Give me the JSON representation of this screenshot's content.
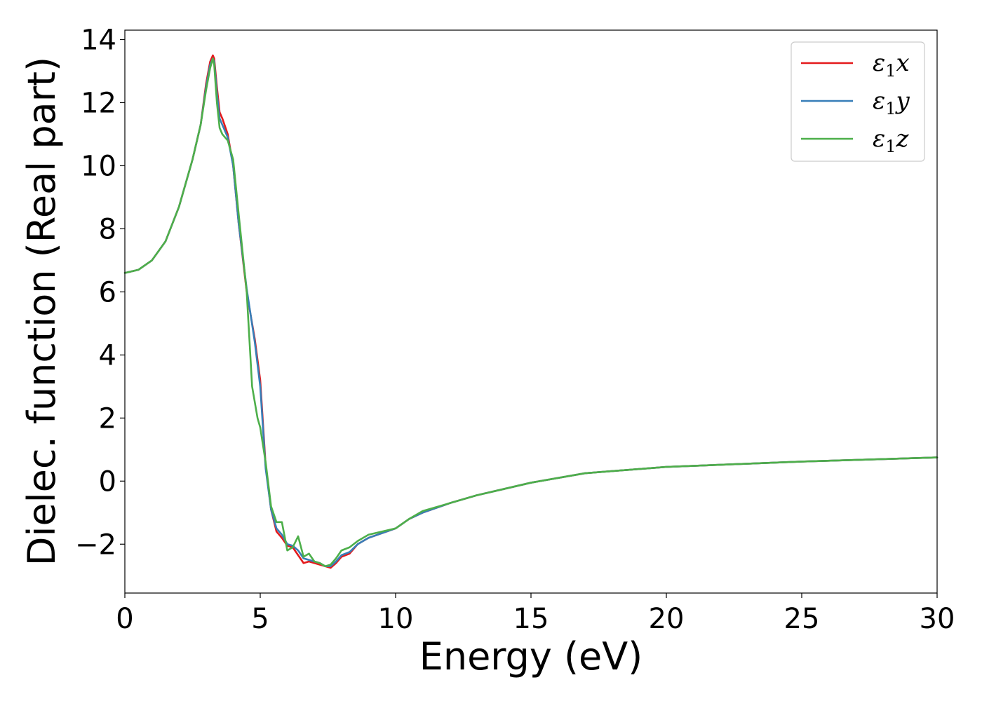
{
  "chart_data": {
    "type": "line",
    "xlabel": "Energy (eV)",
    "ylabel": "Dielec. function (Real part)",
    "xlim": [
      0,
      30
    ],
    "ylim": [
      -3.55,
      14.3
    ],
    "xticks": [
      0,
      5,
      10,
      15,
      20,
      25,
      30
    ],
    "yticks": [
      -2,
      0,
      2,
      4,
      6,
      8,
      10,
      12,
      14
    ],
    "xtick_labels": [
      "0",
      "5",
      "10",
      "15",
      "20",
      "25",
      "30"
    ],
    "ytick_labels": [
      "−2",
      "0",
      "2",
      "4",
      "6",
      "8",
      "10",
      "12",
      "14"
    ],
    "grid": false,
    "legend_position": "top-right",
    "series": [
      {
        "name": "ε₁x",
        "legend_base": "ε",
        "legend_sub": "1",
        "legend_var": "x",
        "color": "#e41a1c",
        "x": [
          0,
          0.5,
          1.0,
          1.5,
          2.0,
          2.5,
          2.8,
          3.0,
          3.15,
          3.25,
          3.3,
          3.4,
          3.5,
          3.6,
          3.8,
          4.0,
          4.2,
          4.5,
          4.8,
          5.0,
          5.2,
          5.4,
          5.6,
          5.8,
          6.0,
          6.2,
          6.4,
          6.6,
          6.8,
          7.0,
          7.2,
          7.4,
          7.6,
          7.8,
          8.0,
          8.3,
          8.6,
          9.0,
          9.5,
          10.0,
          10.5,
          11.0,
          12.0,
          13.0,
          14.0,
          15.0,
          17.0,
          20.0,
          25.0,
          30.0
        ],
        "y": [
          6.6,
          6.7,
          7.0,
          7.6,
          8.7,
          10.2,
          11.3,
          12.6,
          13.3,
          13.5,
          13.4,
          12.5,
          11.7,
          11.5,
          11.0,
          10.0,
          8.2,
          6.0,
          4.5,
          3.2,
          0.5,
          -0.9,
          -1.6,
          -1.8,
          -2.05,
          -2.1,
          -2.35,
          -2.6,
          -2.55,
          -2.6,
          -2.65,
          -2.7,
          -2.75,
          -2.6,
          -2.4,
          -2.3,
          -2.0,
          -1.8,
          -1.65,
          -1.5,
          -1.2,
          -1.0,
          -0.7,
          -0.45,
          -0.25,
          -0.05,
          0.25,
          0.45,
          0.62,
          0.75
        ]
      },
      {
        "name": "ε₁y",
        "legend_base": "ε",
        "legend_sub": "1",
        "legend_var": "y",
        "color": "#377eb8",
        "x": [
          0,
          0.5,
          1.0,
          1.5,
          2.0,
          2.5,
          2.8,
          3.0,
          3.15,
          3.25,
          3.3,
          3.4,
          3.5,
          3.6,
          3.8,
          4.0,
          4.2,
          4.5,
          4.8,
          5.0,
          5.2,
          5.4,
          5.6,
          5.8,
          6.0,
          6.2,
          6.4,
          6.6,
          6.8,
          7.0,
          7.2,
          7.4,
          7.6,
          7.8,
          8.0,
          8.3,
          8.6,
          9.0,
          9.5,
          10.0,
          10.5,
          11.0,
          12.0,
          13.0,
          14.0,
          15.0,
          17.0,
          20.0,
          25.0,
          30.0
        ],
        "y": [
          6.6,
          6.7,
          7.0,
          7.6,
          8.7,
          10.2,
          11.3,
          12.5,
          13.2,
          13.4,
          13.3,
          12.3,
          11.5,
          11.3,
          10.9,
          10.0,
          8.2,
          6.1,
          4.4,
          3.0,
          0.4,
          -0.9,
          -1.5,
          -1.7,
          -2.0,
          -2.05,
          -2.2,
          -2.45,
          -2.5,
          -2.55,
          -2.6,
          -2.7,
          -2.7,
          -2.55,
          -2.35,
          -2.25,
          -2.0,
          -1.8,
          -1.65,
          -1.5,
          -1.2,
          -1.0,
          -0.7,
          -0.45,
          -0.25,
          -0.05,
          0.25,
          0.45,
          0.62,
          0.75
        ]
      },
      {
        "name": "ε₁z",
        "legend_base": "ε",
        "legend_sub": "1",
        "legend_var": "z",
        "color": "#4daf4a",
        "x": [
          0,
          0.5,
          1.0,
          1.5,
          2.0,
          2.5,
          2.8,
          3.0,
          3.15,
          3.25,
          3.3,
          3.4,
          3.5,
          3.6,
          3.8,
          4.0,
          4.2,
          4.5,
          4.7,
          4.9,
          5.0,
          5.2,
          5.4,
          5.6,
          5.8,
          6.0,
          6.2,
          6.4,
          6.6,
          6.8,
          7.0,
          7.2,
          7.4,
          7.6,
          7.8,
          8.0,
          8.3,
          8.6,
          9.0,
          9.5,
          10.0,
          10.5,
          11.0,
          12.0,
          13.0,
          14.0,
          15.0,
          17.0,
          20.0,
          25.0,
          30.0
        ],
        "y": [
          6.6,
          6.7,
          7.0,
          7.6,
          8.7,
          10.2,
          11.3,
          12.4,
          13.1,
          13.4,
          13.2,
          12.0,
          11.2,
          11.0,
          10.8,
          10.2,
          8.5,
          6.0,
          3.0,
          2.0,
          1.7,
          0.6,
          -0.8,
          -1.3,
          -1.3,
          -2.2,
          -2.1,
          -1.75,
          -2.4,
          -2.3,
          -2.55,
          -2.6,
          -2.7,
          -2.65,
          -2.45,
          -2.2,
          -2.1,
          -1.9,
          -1.7,
          -1.6,
          -1.5,
          -1.2,
          -0.95,
          -0.7,
          -0.45,
          -0.25,
          -0.05,
          0.25,
          0.45,
          0.62,
          0.75
        ]
      }
    ]
  }
}
